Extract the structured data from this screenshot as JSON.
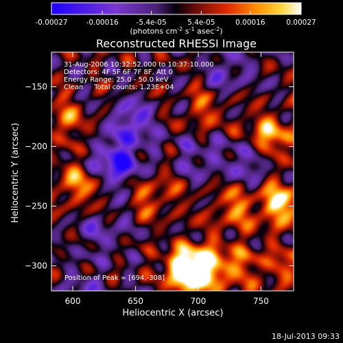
{
  "colorbar": {
    "tick_labels": [
      "-0.00027",
      "-0.00016",
      "-5.4e-05",
      "5.4e-05",
      "0.00016",
      "0.00027"
    ],
    "tick_values": [
      -0.00027,
      -0.00016,
      -5.4e-05,
      5.4e-05,
      0.00016,
      0.00027
    ],
    "range": [
      -0.00027,
      0.00027
    ],
    "units_text": "(photons cm",
    "units_sup1": "-2",
    "units_mid": " s",
    "units_sup2": "-1",
    "units_end": " asec",
    "units_sup3": "-2",
    "units_close": ")"
  },
  "chart_data": {
    "type": "heatmap",
    "title": "Reconstructed RHESSI Image",
    "xlabel": "Heliocentric X (arcsec)",
    "ylabel": "Heliocentric Y (arcsec)",
    "xlim": [
      583,
      776
    ],
    "ylim": [
      -321,
      -121
    ],
    "x_ticks": [
      600,
      650,
      700,
      750
    ],
    "y_ticks": [
      -150,
      -200,
      -250,
      -300
    ],
    "x_tick_labels": [
      "600",
      "650",
      "700",
      "750"
    ],
    "y_tick_labels": [
      "−150",
      "−200",
      "−250",
      "−300"
    ],
    "annotations": [
      "31-Aug-2006 10:32:52.000 to 10:37:10.000",
      "Detectors: 4F 5F 6F 7F 8F, Att 0",
      "Energy Range: 25.0 - 50.0 keV",
      "Clean     Total counts: 1.23E+04"
    ],
    "peak_label": "Position of Peak = [694,-308]",
    "peak": [
      694,
      -308
    ],
    "sources": [
      {
        "x": 698,
        "y": -301,
        "v": 0.00027
      },
      {
        "x": 690,
        "y": -308,
        "v": 0.00024
      },
      {
        "x": 765,
        "y": -248,
        "v": 0.00023
      },
      {
        "x": 757,
        "y": -192,
        "v": 0.00021
      },
      {
        "x": 603,
        "y": -232,
        "v": 0.00016
      },
      {
        "x": 727,
        "y": -252,
        "v": 0.00013
      },
      {
        "x": 666,
        "y": -241,
        "v": 0.00012
      },
      {
        "x": 730,
        "y": -300,
        "v": 0.00014
      },
      {
        "x": 640,
        "y": -197,
        "v": 8e-05
      },
      {
        "x": 705,
        "y": -170,
        "v": 0.0001
      },
      {
        "x": 595,
        "y": -178,
        "v": 0.00012
      },
      {
        "x": 770,
        "y": -300,
        "v": 0.00011
      },
      {
        "x": 636,
        "y": -212,
        "v": -0.00027
      },
      {
        "x": 646,
        "y": -182,
        "v": -0.00019
      },
      {
        "x": 741,
        "y": -212,
        "v": -0.00013
      },
      {
        "x": 700,
        "y": -208,
        "v": -9e-05
      },
      {
        "x": 622,
        "y": -272,
        "v": -9e-05
      },
      {
        "x": 724,
        "y": -137,
        "v": -0.0001
      },
      {
        "x": 609,
        "y": -322,
        "v": -8e-05
      },
      {
        "x": 678,
        "y": -322,
        "v": -6e-05
      }
    ]
  },
  "footer_timestamp": "18-Jul-2013 09:33"
}
